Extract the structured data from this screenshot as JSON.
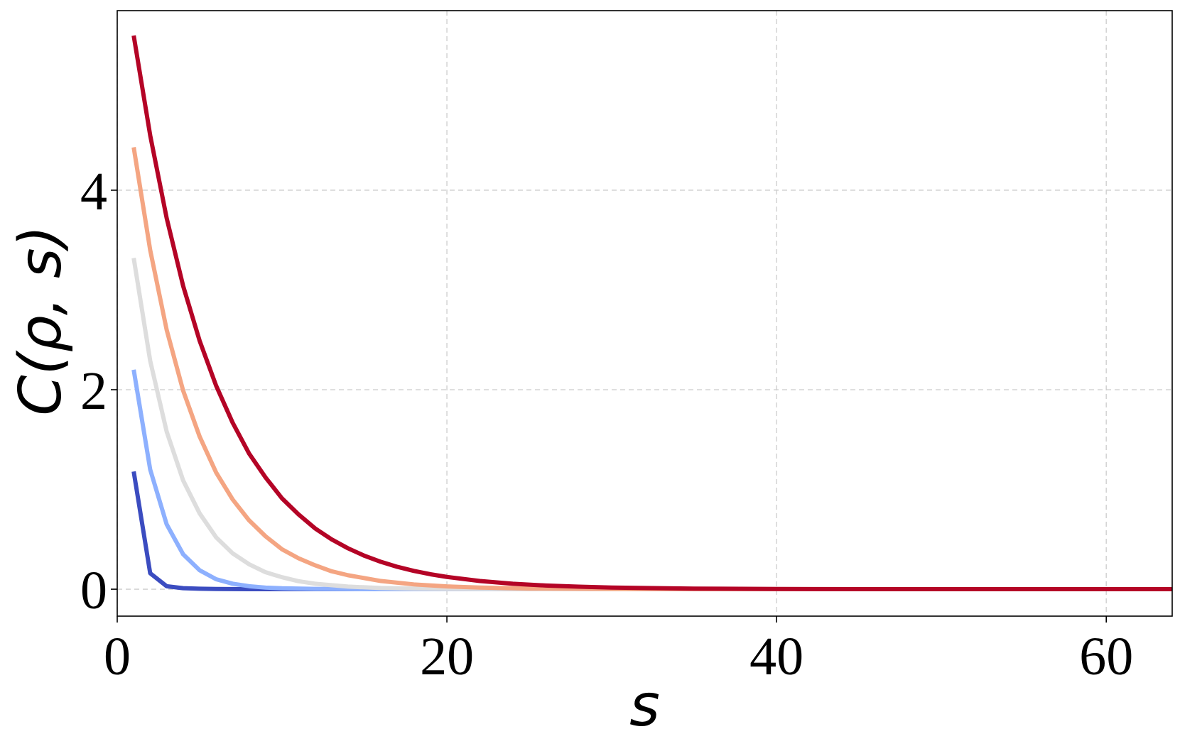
{
  "chart_data": {
    "type": "line",
    "title": "",
    "xlabel": "s",
    "ylabel": "C(ρ, s)",
    "xlim": [
      0,
      64
    ],
    "ylim": [
      -0.27,
      5.8
    ],
    "xticks": [
      0,
      20,
      40,
      60
    ],
    "yticks": [
      0,
      2,
      4
    ],
    "grid": true,
    "legend": "none",
    "series": [
      {
        "color": "#3b4cc0",
        "x": [
          1,
          2,
          3,
          4,
          5,
          6,
          7,
          8,
          10,
          12,
          16,
          20,
          30,
          40,
          50,
          64
        ],
        "y": [
          1.18,
          0.16,
          0.03,
          0.01,
          0.005,
          0.002,
          0.001,
          0,
          0,
          0,
          0,
          0,
          0,
          0,
          0,
          0
        ]
      },
      {
        "color": "#8db0fe",
        "x": [
          1,
          2,
          3,
          4,
          5,
          6,
          7,
          8,
          9,
          10,
          12,
          14,
          16,
          20,
          30,
          40,
          50,
          64
        ],
        "y": [
          2.2,
          1.2,
          0.65,
          0.35,
          0.19,
          0.1,
          0.055,
          0.03,
          0.016,
          0.009,
          0.003,
          0.001,
          0,
          0,
          0,
          0,
          0,
          0
        ]
      },
      {
        "color": "#dddddd",
        "x": [
          1,
          2,
          3,
          4,
          5,
          6,
          7,
          8,
          9,
          10,
          11,
          12,
          14,
          16,
          18,
          20,
          24,
          30,
          40,
          50,
          64
        ],
        "y": [
          3.32,
          2.29,
          1.58,
          1.09,
          0.76,
          0.52,
          0.36,
          0.25,
          0.17,
          0.12,
          0.08,
          0.055,
          0.026,
          0.012,
          0.006,
          0.003,
          0.001,
          0,
          0,
          0,
          0
        ]
      },
      {
        "color": "#f4a582",
        "x": [
          1,
          2,
          3,
          4,
          5,
          6,
          7,
          8,
          9,
          10,
          11,
          12,
          13,
          14,
          16,
          18,
          20,
          22,
          25,
          30,
          40,
          50,
          64
        ],
        "y": [
          4.43,
          3.4,
          2.6,
          1.99,
          1.53,
          1.17,
          0.9,
          0.69,
          0.53,
          0.4,
          0.31,
          0.24,
          0.18,
          0.14,
          0.082,
          0.048,
          0.028,
          0.016,
          0.007,
          0.002,
          0,
          0,
          0
        ]
      },
      {
        "color": "#b40426",
        "x": [
          1,
          2,
          3,
          4,
          5,
          6,
          7,
          8,
          9,
          10,
          11,
          12,
          13,
          14,
          15,
          16,
          17,
          18,
          19,
          20,
          22,
          24,
          26,
          28,
          30,
          35,
          40,
          50,
          64
        ],
        "y": [
          5.55,
          4.55,
          3.72,
          3.04,
          2.49,
          2.04,
          1.67,
          1.36,
          1.12,
          0.91,
          0.75,
          0.61,
          0.5,
          0.41,
          0.335,
          0.274,
          0.224,
          0.183,
          0.15,
          0.123,
          0.082,
          0.055,
          0.037,
          0.025,
          0.016,
          0.006,
          0.002,
          0,
          0
        ]
      }
    ]
  }
}
